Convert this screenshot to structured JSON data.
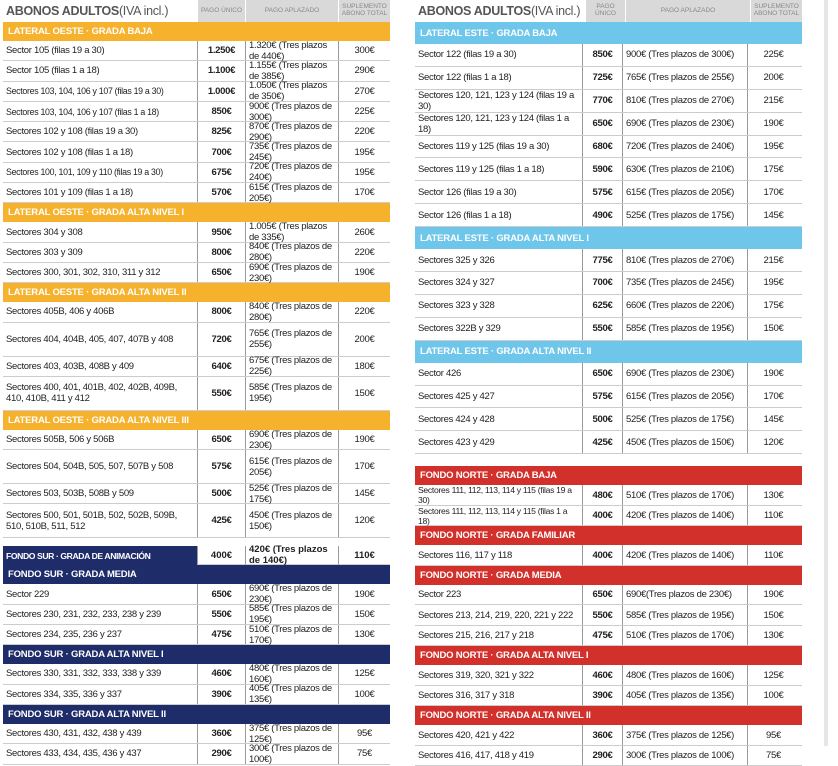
{
  "header": {
    "title": "ABONOS ADULTOS",
    "title_suffix": "(IVA incl.)",
    "col_unico": "PAGO ÚNICO",
    "col_aplazado": "PAGO APLAZADO",
    "col_suplemento": "SUPLEMENTO ABONO TOTAL"
  },
  "colors": {
    "lateral_oeste": "#f6b12d",
    "fondo_sur": "#1f2c6a",
    "lateral_este": "#6ec6ea",
    "fondo_norte": "#d2312b"
  },
  "left": [
    {
      "title": "LATERAL OESTE · GRADA BAJA",
      "color": "lateral_oeste",
      "rows": [
        [
          "Sector 105 (filas 19 a 30)",
          "1.250€",
          "1.320€ (Tres plazos de 440€)",
          "300€"
        ],
        [
          "Sector 105 (filas 1 a 18)",
          "1.100€",
          "1.155€ (Tres plazos de 385€)",
          "290€"
        ],
        [
          "Sectores 103, 104, 106 y 107 (filas 19 a 30)",
          "1.000€",
          "1.050€ (Tres plazos de 350€)",
          "270€"
        ],
        [
          "Sectores 103, 104, 106 y 107 (filas 1 a 18)",
          "850€",
          "900€ (Tres plazos de 300€)",
          "225€"
        ],
        [
          "Sectores 102 y 108 (filas 19 a 30)",
          "825€",
          "870€ (Tres plazos de 290€)",
          "220€"
        ],
        [
          "Sectores 102 y 108 (filas 1 a 18)",
          "700€",
          "735€ (Tres plazos de 245€)",
          "195€"
        ],
        [
          "Sectores 100, 101, 109 y 110 (filas 19 a 30)",
          "675€",
          "720€ (Tres plazos de 240€)",
          "195€"
        ],
        [
          "Sectores 101 y 109 (filas 1 a 18)",
          "570€",
          "615€ (Tres plazos de 205€)",
          "170€"
        ]
      ]
    },
    {
      "title": "LATERAL OESTE · GRADA ALTA NIVEL I",
      "color": "lateral_oeste",
      "rows": [
        [
          "Sectores 304 y 308",
          "950€",
          "1.005€ (Tres plazos de 335€)",
          "260€"
        ],
        [
          "Sectores 303 y 309",
          "800€",
          "840€ (Tres plazos de 280€)",
          "220€"
        ],
        [
          "Sectores 300, 301, 302, 310, 311 y 312",
          "650€",
          "690€ (Tres plazos de 230€)",
          "190€"
        ]
      ]
    },
    {
      "title": "LATERAL OESTE · GRADA ALTA NIVEL II",
      "color": "lateral_oeste",
      "rows": [
        [
          "Sectores 405B, 406 y 406B",
          "800€",
          "840€ (Tres plazos de 280€)",
          "220€"
        ],
        [
          "Sectores 404, 404B, 405, 407, 407B y 408",
          "720€",
          "765€ (Tres plazos de 255€)",
          "200€"
        ],
        [
          "Sectores 403, 403B, 408B y 409",
          "640€",
          "675€ (Tres plazos de 225€)",
          "180€"
        ],
        [
          "Sectores 400, 401, 401B, 402, 402B, 409B, 410, 410B, 411 y 412",
          "550€",
          "585€ (Tres plazos de 195€)",
          "150€"
        ]
      ]
    },
    {
      "title": "LATERAL OESTE · GRADA ALTA NIVEL III",
      "color": "lateral_oeste",
      "rows": [
        [
          "Sectores 505B, 506 y 506B",
          "650€",
          "690€ (Tres plazos de 230€)",
          "190€"
        ],
        [
          "Sectores 504, 504B, 505, 507, 507B y 508",
          "575€",
          "615€ (Tres plazos de 205€)",
          "170€"
        ],
        [
          "Sectores 503, 503B, 508B y 509",
          "500€",
          "525€ (Tres plazos de 175€)",
          "145€"
        ],
        [
          "Sectores 500, 501, 501B, 502, 502B, 509B, 510, 510B, 511, 512",
          "425€",
          "450€ (Tres plazos de 150€)",
          "120€"
        ]
      ]
    },
    {
      "title": "FONDO SUR · GRADA DE ANIMACIÓN",
      "color": "fondo_sur",
      "inline": [
        "400€",
        "420€ (Tres plazos de 140€)",
        "110€"
      ],
      "rows": []
    },
    {
      "title": "FONDO SUR · GRADA MEDIA",
      "color": "fondo_sur",
      "rows": [
        [
          "Sector 229",
          "650€",
          "690€ (Tres plazos de 230€)",
          "190€"
        ],
        [
          "Sectores 230, 231, 232, 233, 238 y 239",
          "550€",
          "585€ (Tres plazos de 195€)",
          "150€"
        ],
        [
          "Sectores 234, 235, 236 y 237",
          "475€",
          "510€ (Tres plazos de 170€)",
          "130€"
        ]
      ]
    },
    {
      "title": "FONDO SUR · GRADA ALTA NIVEL I",
      "color": "fondo_sur",
      "rows": [
        [
          "Sectores 330, 331, 332, 333, 338 y 339",
          "460€",
          "480€ (Tres plazos de 160€)",
          "125€"
        ],
        [
          "Sectores 334, 335, 336 y 337",
          "390€",
          "405€ (Tres plazos de 135€)",
          "100€"
        ]
      ]
    },
    {
      "title": "FONDO SUR · GRADA ALTA NIVEL II",
      "color": "fondo_sur",
      "rows": [
        [
          "Sectores 430, 431, 432, 438 y 439",
          "360€",
          "375€ (Tres plazos de 125€)",
          "95€"
        ],
        [
          "Sectores 433, 434, 435, 436 y 437",
          "290€",
          "300€ (Tres plazos de 100€)",
          "75€"
        ]
      ]
    }
  ],
  "right": [
    {
      "title": "LATERAL ESTE · GRADA BAJA",
      "color": "lateral_este",
      "rows": [
        [
          "Sector 122 (filas 19 a 30)",
          "850€",
          "900€ (Tres plazos de 300€)",
          "225€"
        ],
        [
          "Sector 122 (filas 1 a 18)",
          "725€",
          "765€ (Tres plazos de 255€)",
          "200€"
        ],
        [
          "Sectores 120, 121, 123 y 124 (filas 19 a 30)",
          "770€",
          "810€ (Tres plazos de 270€)",
          "215€"
        ],
        [
          "Sectores 120, 121, 123 y 124 (filas 1 a 18)",
          "650€",
          "690€ (Tres plazos de 230€)",
          "190€"
        ],
        [
          "Sectores 119 y 125 (filas 19 a 30)",
          "680€",
          "720€ (Tres plazos de 240€)",
          "195€"
        ],
        [
          "Sectores 119 y 125 (filas 1 a 18)",
          "590€",
          "630€ (Tres plazos de 210€)",
          "175€"
        ],
        [
          "Sector 126 (filas 19 a 30)",
          "575€",
          "615€ (Tres plazos de 205€)",
          "170€"
        ],
        [
          "Sector 126 (filas 1 a 18)",
          "490€",
          "525€ (Tres plazos de 175€)",
          "145€"
        ]
      ]
    },
    {
      "title": "LATERAL ESTE · GRADA ALTA NIVEL I",
      "color": "lateral_este",
      "rows": [
        [
          "Sectores 325 y 326",
          "775€",
          "810€ (Tres plazos de 270€)",
          "215€"
        ],
        [
          "Sectores 324 y 327",
          "700€",
          "735€ (Tres plazos de 245€)",
          "195€"
        ],
        [
          "Sectores 323 y 328",
          "625€",
          "660€ (Tres plazos de 220€)",
          "175€"
        ],
        [
          "Sectores 322B y 329",
          "550€",
          "585€ (Tres plazos de 195€)",
          "150€"
        ]
      ]
    },
    {
      "title": "LATERAL ESTE · GRADA ALTA NIVEL II",
      "color": "lateral_este",
      "rows": [
        [
          "Sector 426",
          "650€",
          "690€ (Tres plazos de 230€)",
          "190€"
        ],
        [
          "Sectores 425 y 427",
          "575€",
          "615€ (Tres plazos de 205€)",
          "170€"
        ],
        [
          "Sectores 424 y 428",
          "500€",
          "525€ (Tres plazos de 175€)",
          "145€"
        ],
        [
          "Sectores 423 y 429",
          "425€",
          "450€ (Tres plazos de 150€)",
          "120€"
        ]
      ]
    },
    {
      "title": "FONDO NORTE · GRADA BAJA",
      "color": "fondo_norte",
      "rows": [
        [
          "Sectores 111, 112, 113, 114 y 115 (filas 19 a 30)",
          "480€",
          "510€ (Tres plazos de 170€)",
          "130€"
        ],
        [
          "Sectores 111, 112, 113, 114 y 115 (filas 1 a 18)",
          "400€",
          "420€ (Tres plazos de 140€)",
          "110€"
        ]
      ]
    },
    {
      "title": "FONDO NORTE · GRADA FAMILIAR",
      "color": "fondo_norte",
      "rows": [
        [
          "Sectores 116, 117 y 118",
          "400€",
          "420€ (Tres plazos de 140€)",
          "110€"
        ]
      ]
    },
    {
      "title": "FONDO NORTE · GRADA MEDIA",
      "color": "fondo_norte",
      "rows": [
        [
          "Sector 223",
          "650€",
          "690€(Tres plazos de 230€)",
          "190€"
        ],
        [
          "Sectores 213, 214, 219, 220, 221 y 222",
          "550€",
          "585€ (Tres plazos de 195€)",
          "150€"
        ],
        [
          "Sectores 215, 216, 217 y 218",
          "475€",
          "510€ (Tres plazos de 170€)",
          "130€"
        ]
      ]
    },
    {
      "title": "FONDO NORTE · GRADA ALTA NIVEL I",
      "color": "fondo_norte",
      "rows": [
        [
          "Sectores 319, 320, 321 y 322",
          "460€",
          "480€ (Tres plazos de 160€)",
          "125€"
        ],
        [
          "Sectores 316, 317 y 318",
          "390€",
          "405€ (Tres plazos de 135€)",
          "100€"
        ]
      ]
    },
    {
      "title": "FONDO NORTE · GRADA ALTA NIVEL II",
      "color": "fondo_norte",
      "rows": [
        [
          "Sectores 420, 421 y 422",
          "360€",
          "375€ (Tres plazos de 125€)",
          "95€"
        ],
        [
          "Sectores 416, 417, 418 y 419",
          "290€",
          "300€ (Tres plazos de 100€)",
          "75€"
        ]
      ]
    }
  ]
}
